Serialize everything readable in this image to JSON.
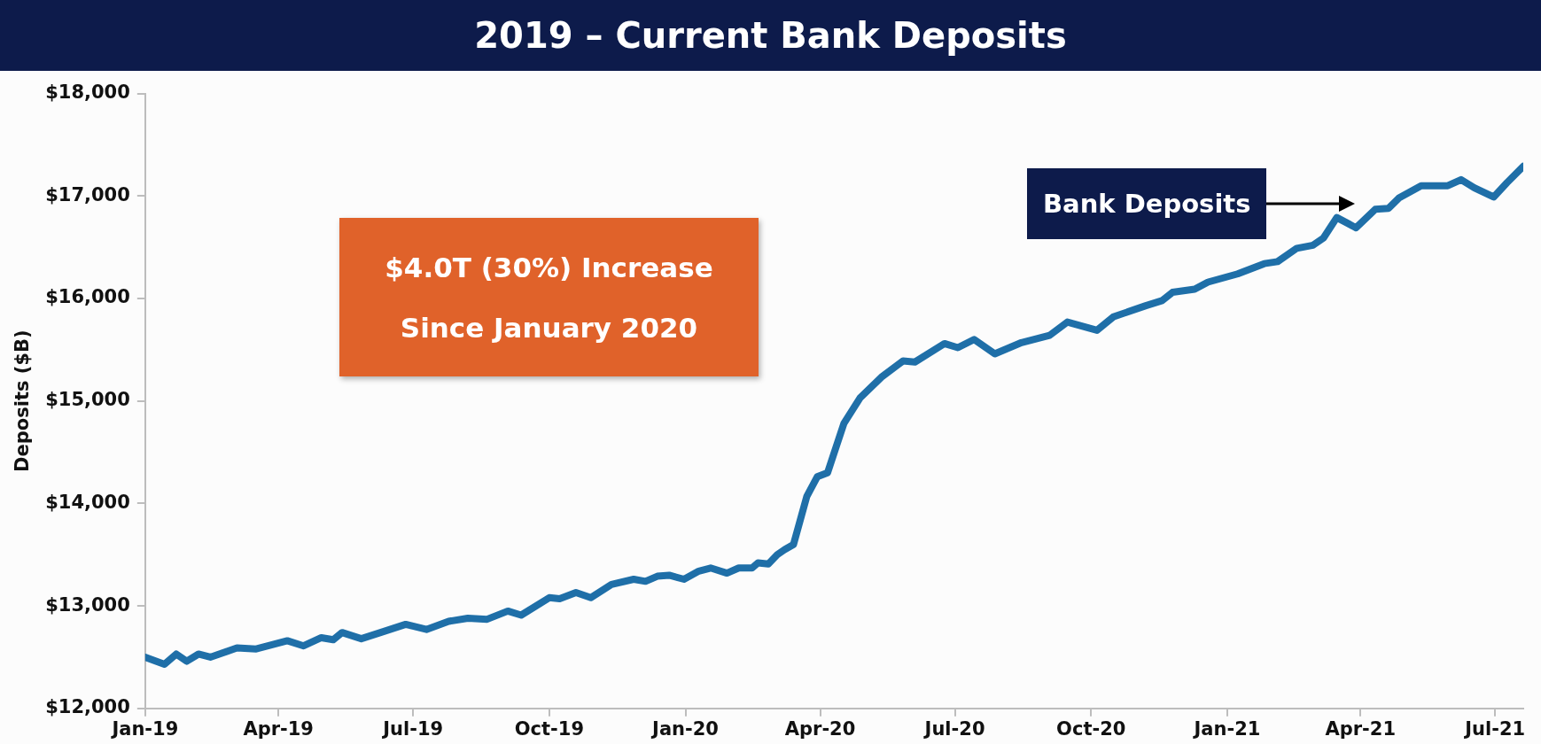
{
  "chart_data": {
    "type": "line",
    "title": "2019 – Current Bank Deposits",
    "ylabel": "Deposits ($B)",
    "annotations": [
      "$4.0T (30%) Increase Since January 2020"
    ],
    "xlim": [
      "2019-01-01",
      "2021-07-20"
    ],
    "xticks": [
      {
        "value": "2019-01-01",
        "label": "Jan-19"
      },
      {
        "value": "2019-04-01",
        "label": "Apr-19"
      },
      {
        "value": "2019-07-01",
        "label": "Jul-19"
      },
      {
        "value": "2019-10-01",
        "label": "Oct-19"
      },
      {
        "value": "2020-01-01",
        "label": "Jan-20"
      },
      {
        "value": "2020-04-01",
        "label": "Apr-20"
      },
      {
        "value": "2020-07-01",
        "label": "Jul-20"
      },
      {
        "value": "2020-10-01",
        "label": "Oct-20"
      },
      {
        "value": "2021-01-01",
        "label": "Jan-21"
      },
      {
        "value": "2021-04-01",
        "label": "Apr-21"
      },
      {
        "value": "2021-07-01",
        "label": "Jul-21"
      }
    ],
    "ylim": [
      12000,
      18000
    ],
    "yticks": [
      {
        "value": 12000,
        "label": "$12,000"
      },
      {
        "value": 13000,
        "label": "$13,000"
      },
      {
        "value": 14000,
        "label": "$14,000"
      },
      {
        "value": 15000,
        "label": "$15,000"
      },
      {
        "value": 16000,
        "label": "$16,000"
      },
      {
        "value": 17000,
        "label": "$17,000"
      },
      {
        "value": 18000,
        "label": "$18,000"
      }
    ],
    "grid": false,
    "legend": false,
    "marker": "none",
    "line_style": "solid",
    "x": [
      "2019-01-01",
      "2019-01-14",
      "2019-01-22",
      "2019-01-29",
      "2019-02-06",
      "2019-02-14",
      "2019-03-04",
      "2019-03-17",
      "2019-04-07",
      "2019-04-18",
      "2019-04-30",
      "2019-05-08",
      "2019-05-14",
      "2019-05-27",
      "2019-06-09",
      "2019-06-26",
      "2019-07-10",
      "2019-07-25",
      "2019-08-07",
      "2019-08-20",
      "2019-09-03",
      "2019-09-12",
      "2019-10-01",
      "2019-10-08",
      "2019-10-19",
      "2019-10-29",
      "2019-11-12",
      "2019-11-27",
      "2019-12-05",
      "2019-12-13",
      "2019-12-21",
      "2019-12-31",
      "2020-01-10",
      "2020-01-18",
      "2020-01-29",
      "2020-02-06",
      "2020-02-15",
      "2020-02-19",
      "2020-02-26",
      "2020-03-03",
      "2020-03-08",
      "2020-03-14",
      "2020-03-23",
      "2020-03-30",
      "2020-04-06",
      "2020-04-17",
      "2020-04-28",
      "2020-05-13",
      "2020-05-27",
      "2020-06-04",
      "2020-06-24",
      "2020-07-03",
      "2020-07-14",
      "2020-07-28",
      "2020-08-15",
      "2020-09-03",
      "2020-09-15",
      "2020-10-05",
      "2020-10-16",
      "2020-11-07",
      "2020-11-18",
      "2020-11-25",
      "2020-12-10",
      "2020-12-19",
      "2021-01-08",
      "2021-01-26",
      "2021-02-04",
      "2021-02-17",
      "2021-02-28",
      "2021-03-07",
      "2021-03-16",
      "2021-03-29",
      "2021-04-11",
      "2021-04-20",
      "2021-04-27",
      "2021-05-12",
      "2021-05-30",
      "2021-06-08",
      "2021-06-17",
      "2021-06-30",
      "2021-07-09",
      "2021-07-20"
    ],
    "series": [
      {
        "name": "Bank Deposits",
        "color": "#1f6fa8",
        "values": [
          12500,
          12430,
          12530,
          12460,
          12530,
          12500,
          12590,
          12580,
          12660,
          12610,
          12690,
          12670,
          12740,
          12680,
          12740,
          12820,
          12770,
          12850,
          12880,
          12870,
          12950,
          12910,
          13080,
          13070,
          13130,
          13080,
          13210,
          13260,
          13240,
          13290,
          13300,
          13260,
          13340,
          13370,
          13320,
          13370,
          13370,
          13420,
          13410,
          13500,
          13550,
          13600,
          14070,
          14260,
          14300,
          14780,
          15030,
          15240,
          15390,
          15380,
          15560,
          15520,
          15600,
          15460,
          15570,
          15640,
          15770,
          15690,
          15820,
          15930,
          15980,
          16060,
          16090,
          16160,
          16240,
          16340,
          16360,
          16490,
          16520,
          16590,
          16790,
          16690,
          16870,
          16880,
          16980,
          17100,
          17100,
          17160,
          17080,
          16990,
          17130,
          17290
        ]
      }
    ]
  }
}
